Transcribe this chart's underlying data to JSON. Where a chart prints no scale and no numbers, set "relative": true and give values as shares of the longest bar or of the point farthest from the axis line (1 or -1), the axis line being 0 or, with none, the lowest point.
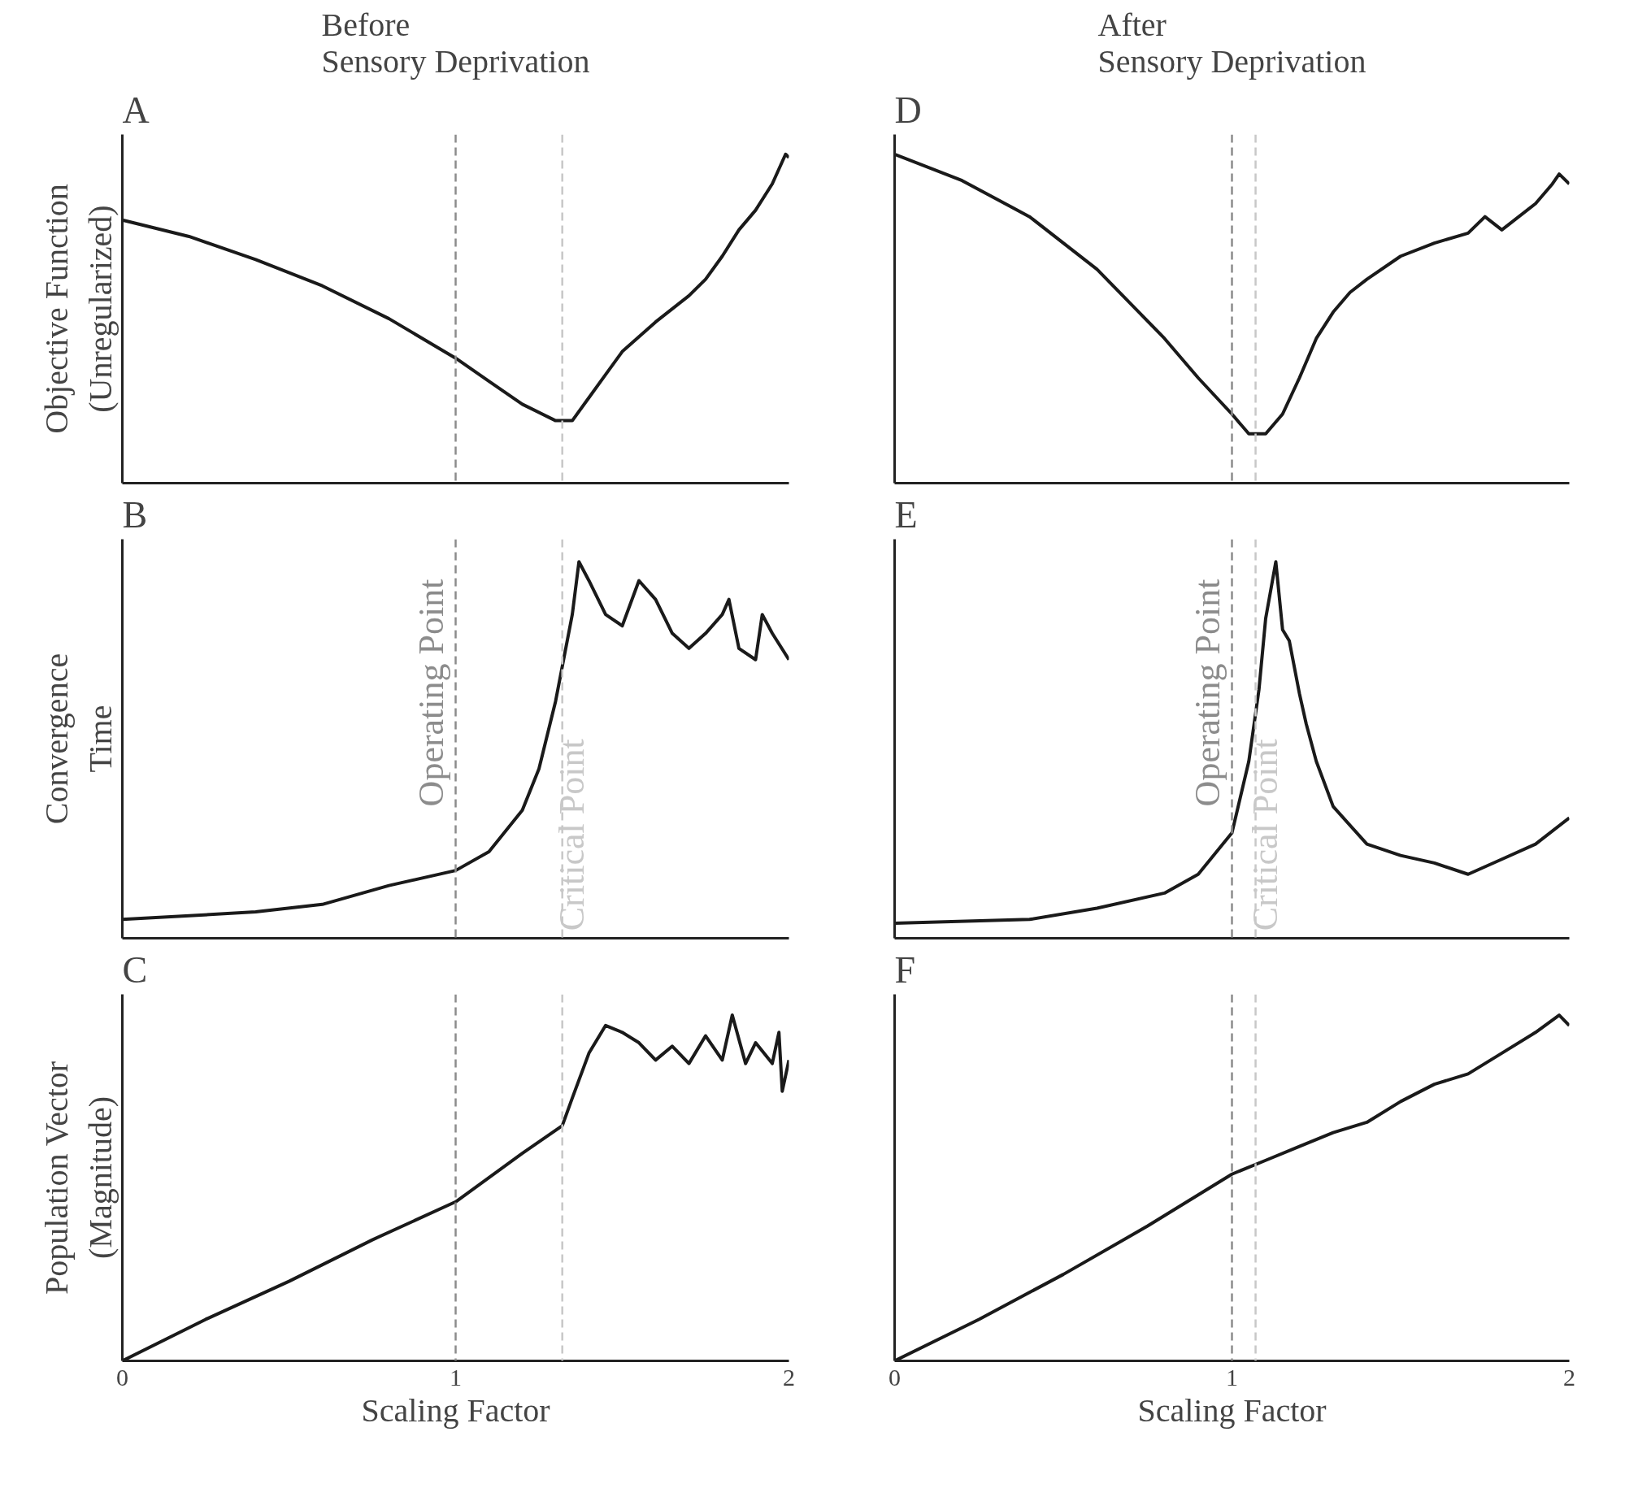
{
  "chart_data": [
    {
      "type": "line",
      "relative": true,
      "title": "Before\nSensory Deprivation",
      "ylabel": "Objective Function\n(Unregularized)",
      "annotations": [
        "A"
      ],
      "xlim": [
        0,
        2
      ],
      "xticks": [
        0,
        1,
        2
      ],
      "tick_labels": false,
      "grid": false,
      "line_style": "solid",
      "x": [
        0,
        0.2,
        0.4,
        0.6,
        0.8,
        1.0,
        1.1,
        1.2,
        1.3,
        1.35,
        1.4,
        1.45,
        1.5,
        1.6,
        1.7,
        1.75,
        1.8,
        1.85,
        1.9,
        1.95,
        1.99,
        2.0
      ],
      "series": [
        {
          "color": "#1a1a1a",
          "values": [
            0.8,
            0.75,
            0.68,
            0.6,
            0.5,
            0.38,
            0.31,
            0.24,
            0.19,
            0.19,
            0.26,
            0.33,
            0.4,
            0.49,
            0.57,
            0.62,
            0.69,
            0.77,
            0.83,
            0.91,
            1.0,
            0.99
          ]
        }
      ],
      "ref_lines": [
        {
          "axis": "x",
          "value": 1.0,
          "label": null,
          "color": "#8c8c8c",
          "line_style": "dashed"
        },
        {
          "axis": "x",
          "value": 1.32,
          "label": null,
          "color": "#c8c8c8",
          "line_style": "dashed"
        }
      ]
    },
    {
      "type": "line",
      "relative": true,
      "title": "After\nSensory Deprivation",
      "annotations": [
        "D"
      ],
      "xlim": [
        0,
        2
      ],
      "xticks": [
        0,
        1,
        2
      ],
      "tick_labels": false,
      "grid": false,
      "line_style": "solid",
      "x": [
        0,
        0.2,
        0.4,
        0.6,
        0.8,
        0.9,
        1.0,
        1.05,
        1.1,
        1.15,
        1.2,
        1.25,
        1.3,
        1.35,
        1.4,
        1.5,
        1.6,
        1.7,
        1.75,
        1.8,
        1.9,
        1.95,
        1.97,
        2.0
      ],
      "series": [
        {
          "color": "#1a1a1a",
          "values": [
            1.0,
            0.92,
            0.81,
            0.65,
            0.44,
            0.32,
            0.21,
            0.15,
            0.15,
            0.21,
            0.32,
            0.44,
            0.52,
            0.58,
            0.62,
            0.69,
            0.73,
            0.76,
            0.81,
            0.77,
            0.85,
            0.91,
            0.94,
            0.91
          ]
        }
      ],
      "ref_lines": [
        {
          "axis": "x",
          "value": 1.0,
          "label": null,
          "color": "#8c8c8c",
          "line_style": "dashed"
        },
        {
          "axis": "x",
          "value": 1.07,
          "label": null,
          "color": "#c8c8c8",
          "line_style": "dashed"
        }
      ]
    },
    {
      "type": "line",
      "relative": true,
      "ylabel": "Convergence\nTime",
      "annotations": [
        "B"
      ],
      "xlim": [
        0,
        2
      ],
      "xticks": [
        0,
        1,
        2
      ],
      "tick_labels": false,
      "grid": false,
      "line_style": "solid",
      "x": [
        0,
        0.4,
        0.6,
        0.8,
        1.0,
        1.1,
        1.2,
        1.25,
        1.3,
        1.35,
        1.37,
        1.4,
        1.45,
        1.5,
        1.55,
        1.6,
        1.65,
        1.7,
        1.75,
        1.8,
        1.82,
        1.85,
        1.9,
        1.92,
        1.95,
        2.0
      ],
      "series": [
        {
          "color": "#1a1a1a",
          "values": [
            0.05,
            0.07,
            0.09,
            0.14,
            0.18,
            0.23,
            0.34,
            0.45,
            0.63,
            0.86,
            1.0,
            0.95,
            0.86,
            0.83,
            0.95,
            0.9,
            0.81,
            0.77,
            0.81,
            0.86,
            0.9,
            0.77,
            0.74,
            0.86,
            0.81,
            0.74
          ]
        }
      ],
      "ref_lines": [
        {
          "axis": "x",
          "value": 1.0,
          "label": "Operating Point",
          "color": "#8c8c8c",
          "line_style": "dashed"
        },
        {
          "axis": "x",
          "value": 1.32,
          "label": "Critical Point",
          "color": "#c8c8c8",
          "line_style": "dashed"
        }
      ]
    },
    {
      "type": "line",
      "relative": true,
      "annotations": [
        "E"
      ],
      "xlim": [
        0,
        2
      ],
      "xticks": [
        0,
        1,
        2
      ],
      "tick_labels": false,
      "grid": false,
      "line_style": "solid",
      "x": [
        0,
        0.4,
        0.6,
        0.8,
        0.9,
        1.0,
        1.05,
        1.08,
        1.1,
        1.13,
        1.15,
        1.17,
        1.2,
        1.22,
        1.25,
        1.3,
        1.4,
        1.5,
        1.6,
        1.7,
        1.8,
        1.9,
        2.0
      ],
      "series": [
        {
          "color": "#1a1a1a",
          "values": [
            0.04,
            0.05,
            0.08,
            0.12,
            0.17,
            0.28,
            0.47,
            0.66,
            0.85,
            1.0,
            0.82,
            0.79,
            0.65,
            0.57,
            0.47,
            0.35,
            0.25,
            0.22,
            0.2,
            0.17,
            0.21,
            0.25,
            0.32
          ]
        }
      ],
      "ref_lines": [
        {
          "axis": "x",
          "value": 1.0,
          "label": "Operating Point",
          "color": "#8c8c8c",
          "line_style": "dashed"
        },
        {
          "axis": "x",
          "value": 1.07,
          "label": "Critical Point",
          "color": "#c8c8c8",
          "line_style": "dashed"
        }
      ]
    },
    {
      "type": "line",
      "relative": true,
      "ylabel": "Population Vector\n(Magnitude)",
      "xlabel": "Scaling Factor",
      "annotations": [
        "C"
      ],
      "xlim": [
        0,
        2
      ],
      "xticks": [
        0,
        1,
        2
      ],
      "tick_labels": "x",
      "grid": false,
      "line_style": "solid",
      "x": [
        0,
        0.25,
        0.5,
        0.75,
        1.0,
        1.2,
        1.32,
        1.35,
        1.4,
        1.45,
        1.5,
        1.55,
        1.6,
        1.65,
        1.7,
        1.75,
        1.8,
        1.83,
        1.87,
        1.9,
        1.95,
        1.97,
        1.98,
        2.0
      ],
      "series": [
        {
          "color": "#1a1a1a",
          "values": [
            0,
            0.12,
            0.23,
            0.35,
            0.46,
            0.6,
            0.68,
            0.76,
            0.89,
            0.97,
            0.95,
            0.92,
            0.87,
            0.91,
            0.86,
            0.94,
            0.87,
            1.0,
            0.86,
            0.92,
            0.86,
            0.95,
            0.78,
            0.87
          ]
        }
      ],
      "ref_lines": [
        {
          "axis": "x",
          "value": 1.0,
          "label": null,
          "color": "#8c8c8c",
          "line_style": "dashed"
        },
        {
          "axis": "x",
          "value": 1.32,
          "label": null,
          "color": "#c8c8c8",
          "line_style": "dashed"
        }
      ]
    },
    {
      "type": "line",
      "relative": true,
      "xlabel": "Scaling Factor",
      "annotations": [
        "F"
      ],
      "xlim": [
        0,
        2
      ],
      "xticks": [
        0,
        1,
        2
      ],
      "tick_labels": "x",
      "grid": false,
      "line_style": "solid",
      "x": [
        0,
        0.25,
        0.5,
        0.75,
        1.0,
        1.1,
        1.2,
        1.3,
        1.4,
        1.5,
        1.6,
        1.7,
        1.8,
        1.9,
        1.97,
        2.0
      ],
      "series": [
        {
          "color": "#1a1a1a",
          "values": [
            0,
            0.12,
            0.25,
            0.39,
            0.54,
            0.58,
            0.62,
            0.66,
            0.69,
            0.75,
            0.8,
            0.83,
            0.89,
            0.95,
            1.0,
            0.97
          ]
        }
      ],
      "ref_lines": [
        {
          "axis": "x",
          "value": 1.0,
          "label": null,
          "color": "#8c8c8c",
          "line_style": "dashed"
        },
        {
          "axis": "x",
          "value": 1.07,
          "label": null,
          "color": "#c8c8c8",
          "line_style": "dashed"
        }
      ]
    }
  ]
}
